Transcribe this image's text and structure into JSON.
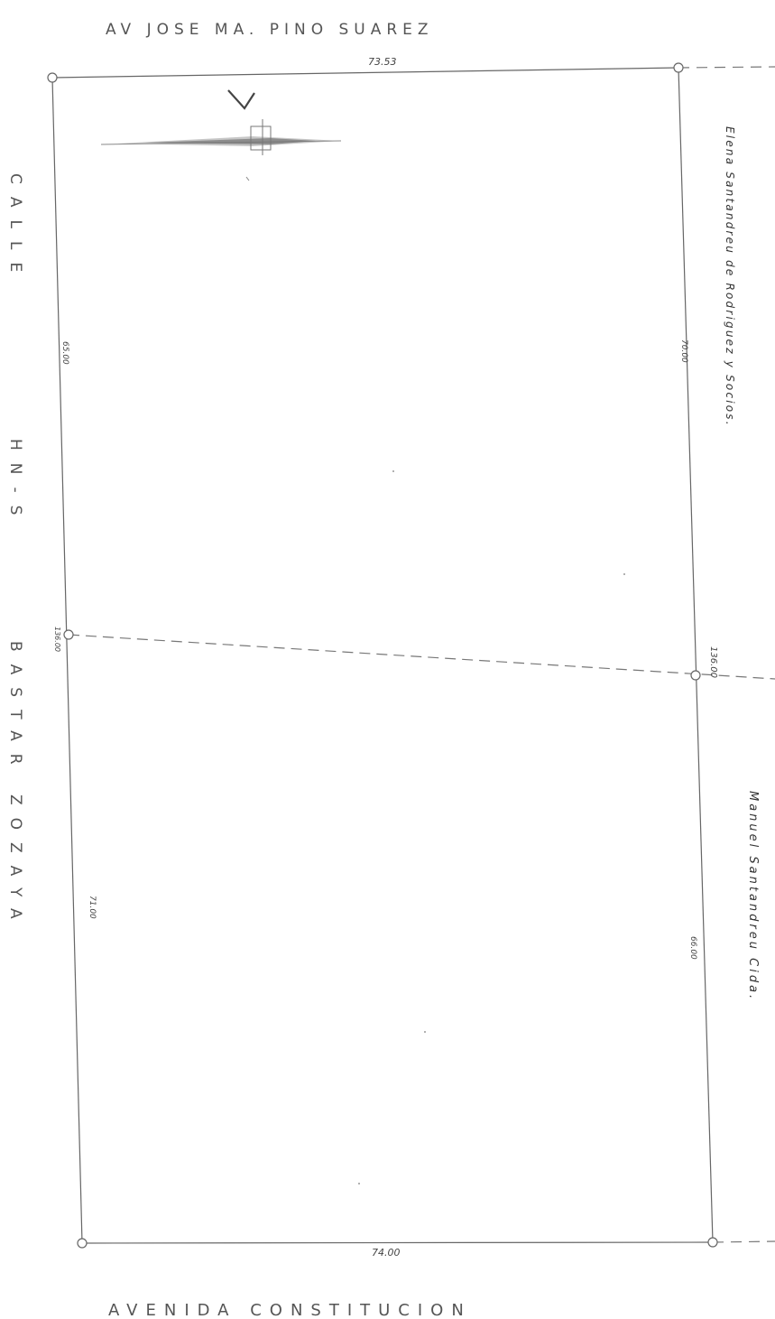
{
  "streets": {
    "north": "AV JOSE MA. PINO SUAREZ",
    "south": "AVENIDA CONSTITUCION",
    "west_line1": "CALLE",
    "west_line2": "HN-S",
    "west_line3": "BASTAR ZOZAYA"
  },
  "dimensions": {
    "top": "73.53",
    "bottom": "74.00",
    "left_upper": "65.00",
    "left_lower": "71.00",
    "left_mid": "136.00",
    "right_upper": "70.00",
    "right_lower": "66.00",
    "right_mid": "136.00"
  },
  "neighbors": {
    "upper": "Elena Santandreu de Rodriguez y Socios.",
    "lower": "Manuel Santandreu Cida."
  },
  "icons": {
    "north_arrow": "north-arrow-icon"
  }
}
